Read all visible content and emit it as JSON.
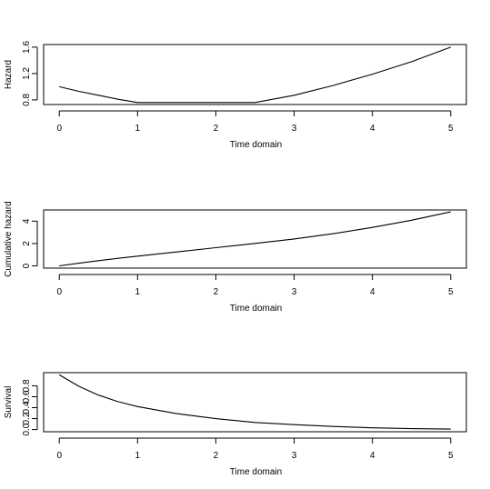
{
  "chart_data": [
    {
      "type": "line",
      "xlabel": "Time domain",
      "ylabel": "Hazard",
      "xlim": [
        -0.2,
        5.2
      ],
      "ylim": [
        0.73,
        1.64
      ],
      "xticks": [
        0,
        1,
        2,
        3,
        4,
        5
      ],
      "xtick_labels": [
        "0",
        "1",
        "2",
        "3",
        "4",
        "5"
      ],
      "yticks": [
        0.8,
        1.2,
        1.6
      ],
      "ytick_labels": [
        "0.8",
        "1.2",
        "1.6"
      ],
      "grid": false,
      "legend": "none",
      "line_color": "#000000",
      "series": [
        {
          "x": [
            0,
            0.25,
            0.5,
            0.75,
            1.0,
            1.5,
            2.0,
            2.5,
            3.0,
            3.5,
            4.0,
            4.5,
            5.0
          ],
          "values": [
            1.0,
            0.93,
            0.87,
            0.81,
            0.76,
            0.76,
            0.76,
            0.76,
            0.87,
            1.02,
            1.19,
            1.38,
            1.6
          ]
        }
      ]
    },
    {
      "type": "line",
      "xlabel": "Time domain",
      "ylabel": "Cumulative hazard",
      "xlim": [
        -0.2,
        5.2
      ],
      "ylim": [
        -0.2,
        5.0
      ],
      "xticks": [
        0,
        1,
        2,
        3,
        4,
        5
      ],
      "xtick_labels": [
        "0",
        "1",
        "2",
        "3",
        "4",
        "5"
      ],
      "yticks": [
        0,
        2,
        4
      ],
      "ytick_labels": [
        "0",
        "2",
        "4"
      ],
      "grid": false,
      "legend": "none",
      "line_color": "#000000",
      "series": [
        {
          "x": [
            0,
            0.25,
            0.5,
            0.75,
            1.0,
            1.5,
            2.0,
            2.5,
            3.0,
            3.5,
            4.0,
            4.5,
            5.0
          ],
          "values": [
            0,
            0.24,
            0.47,
            0.68,
            0.87,
            1.25,
            1.63,
            2.01,
            2.41,
            2.88,
            3.44,
            4.08,
            4.83
          ]
        }
      ]
    },
    {
      "type": "line",
      "xlabel": "Time domain",
      "ylabel": "Survival",
      "xlim": [
        -0.2,
        5.2
      ],
      "ylim": [
        -0.04,
        1.04
      ],
      "xticks": [
        0,
        1,
        2,
        3,
        4,
        5
      ],
      "xtick_labels": [
        "0",
        "1",
        "2",
        "3",
        "4",
        "5"
      ],
      "yticks": [
        0,
        0.2,
        0.4,
        0.6,
        0.8
      ],
      "ytick_labels": [
        "0.0",
        "0.2",
        "0.4",
        "0.6",
        "0.8"
      ],
      "grid": false,
      "legend": "none",
      "line_color": "#000000",
      "series": [
        {
          "x": [
            0,
            0.25,
            0.5,
            0.75,
            1.0,
            1.5,
            2.0,
            2.5,
            3.0,
            3.5,
            4.0,
            4.5,
            5.0
          ],
          "values": [
            1.0,
            0.79,
            0.63,
            0.51,
            0.42,
            0.29,
            0.2,
            0.13,
            0.09,
            0.056,
            0.032,
            0.017,
            0.008
          ]
        }
      ]
    }
  ]
}
